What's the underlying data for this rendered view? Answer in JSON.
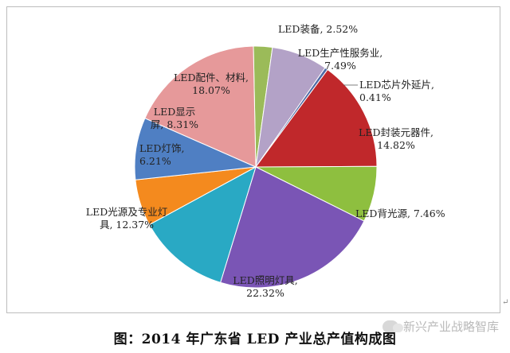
{
  "chart_data": {
    "type": "pie",
    "title": "",
    "slices": [
      {
        "label": "LED装备, 2.52%",
        "value": 2.52,
        "color": "#9bbb59"
      },
      {
        "label": "LED生产性服务业, 7.49%",
        "value": 7.49,
        "color": "#b3a2c7"
      },
      {
        "label": "LED芯片外延片, 0.41%",
        "value": 0.41,
        "color": "#4f6aa5"
      },
      {
        "label": "LED封装元器件, 14.82%",
        "value": 14.82,
        "color": "#c0282b"
      },
      {
        "label": "LED背光源, 7.46%",
        "value": 7.46,
        "color": "#8ebf3f"
      },
      {
        "label": "LED照明灯具, 22.32%",
        "value": 22.32,
        "color": "#7a55b5"
      },
      {
        "label": "LED光源及专业灯具, 12.37%",
        "value": 12.37,
        "color": "#29a9c4"
      },
      {
        "label": "LED灯饰, 6.21%",
        "value": 6.21,
        "color": "#f48a1e"
      },
      {
        "label": "LED显示屏, 8.31%",
        "value": 8.31,
        "color": "#4f7fc3"
      },
      {
        "label": "LED配件、材料, 18.07%",
        "value": 18.07,
        "color": "#e6999a"
      }
    ],
    "labels": [
      {
        "lines": [
          "LED装备, 2.52%"
        ]
      },
      {
        "lines": [
          "LED生产性服务业,",
          "7.49%"
        ]
      },
      {
        "lines": [
          "LED芯片外延片,",
          "0.41%"
        ]
      },
      {
        "lines": [
          "LED封装元器件,",
          "14.82%"
        ]
      },
      {
        "lines": [
          "LED背光源, 7.46%"
        ]
      },
      {
        "lines": [
          "LED照明灯具,",
          "22.32%"
        ]
      },
      {
        "lines": [
          "LED光源及专业灯",
          "具, 12.37%"
        ]
      },
      {
        "lines": [
          "LED灯饰,",
          "6.21%"
        ]
      },
      {
        "lines": [
          "LED显示",
          "屏, 8.31%"
        ]
      },
      {
        "lines": [
          "LED配件、材料,",
          "18.07%"
        ]
      }
    ]
  },
  "caption": "图：2014 年广东省 LED 产业总产值构成图",
  "watermark": "新兴产业战略智库",
  "paragraph_mark": "↵"
}
